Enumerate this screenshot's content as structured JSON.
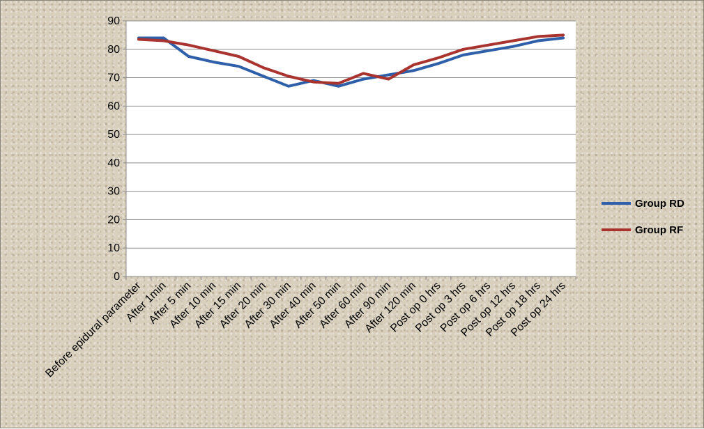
{
  "chart_data": {
    "type": "line",
    "title": "",
    "xlabel": "",
    "ylabel": "",
    "ylim": [
      0,
      90
    ],
    "yticks": [
      0,
      10,
      20,
      30,
      40,
      50,
      60,
      70,
      80,
      90
    ],
    "grid": "horizontal",
    "legend_position": "right",
    "categories": [
      "Before epidural parameter",
      "After 1min",
      "After 5 min",
      "After 10 min",
      "After 15 min",
      "After 20 min",
      "After 30 min",
      "After 40 min",
      "After 50 min",
      "After 60 min",
      "After 90 min",
      "After 120 min",
      "Post op 0 hrs",
      "Post op 3 hrs",
      "Post op 6 hrs",
      "Post op 12 hrs",
      "Post op 18 hrs",
      "Post op 24 hrs"
    ],
    "series": [
      {
        "name": "Group RD",
        "color": "#2e5fa8",
        "values": [
          84,
          84,
          77.5,
          75.5,
          74,
          70.5,
          67,
          69,
          67,
          69.5,
          71,
          72.5,
          75,
          78,
          79.5,
          81,
          83,
          84
        ]
      },
      {
        "name": "Group RF",
        "color": "#a8332f",
        "values": [
          83.5,
          83,
          81.5,
          79.5,
          77.5,
          73.5,
          70.5,
          68.5,
          68,
          71.5,
          69.5,
          74.5,
          77,
          80,
          81.5,
          83,
          84.5,
          85
        ]
      }
    ]
  }
}
